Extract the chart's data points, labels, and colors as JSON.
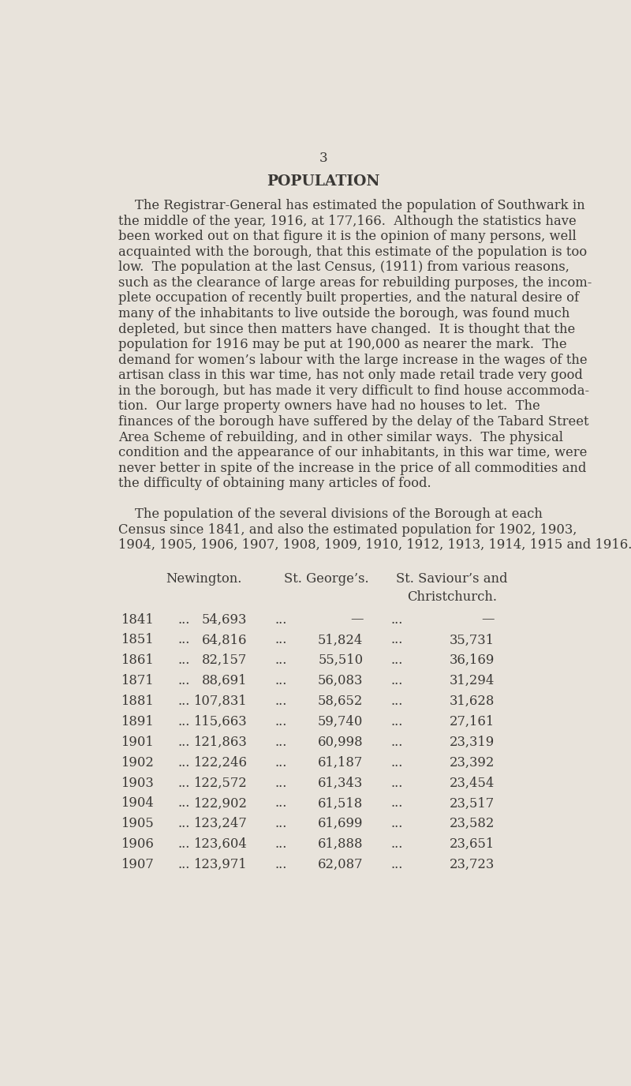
{
  "page_number": "3",
  "title": "POPULATION",
  "background_color": "#e8e3db",
  "text_color": "#3a3835",
  "para1_lines": [
    "    The Registrar-General has estimated the population of Southwark in",
    "the middle of the year, 1916, at 177,166.  Although the statistics have",
    "been worked out on that figure it is the opinion of many persons, well",
    "acquainted with the borough, that this estimate of the population is too",
    "low.  The population at the last Census, (1911) from various reasons,",
    "such as the clearance of large areas for rebuilding purposes, the incom-",
    "plete occupation of recently built properties, and the natural desire of",
    "many of the inhabitants to live outside the borough, was found much",
    "depleted, but since then matters have changed.  It is thought that the",
    "population for 1916 may be put at 190,000 as nearer the mark.  The",
    "demand for women’s labour with the large increase in the wages of the",
    "artisan class in this war time, has not only made retail trade very good",
    "in the borough, but has made it very difficult to find house accommoda-",
    "tion.  Our large property owners have had no houses to let.  The",
    "finances of the borough have suffered by the delay of the Tabard Street",
    "Area Scheme of rebuilding, and in other similar ways.  The physical",
    "condition and the appearance of our inhabitants, in this war time, were",
    "never better in spite of the increase in the price of all commodities and",
    "the difficulty of obtaining many articles of food."
  ],
  "para2_lines": [
    "    The population of the several divisions of the Borough at each",
    "Census since 1841, and also the estimated population for 1902, 1903,",
    "1904, 1905, 1906, 1907, 1908, 1909, 1910, 1912, 1913, 1914, 1915 and 1916."
  ],
  "table_header_line1": "St. Saviour’s and",
  "table_header_newington": "Newington.",
  "table_header_george": "St. George’s.",
  "table_header_line2": "Christchurch.",
  "table_rows": [
    [
      "1841",
      "...",
      "54,693",
      "...",
      "—",
      "...",
      "—"
    ],
    [
      "1851",
      "...",
      "64,816",
      "...",
      "51,824",
      "...",
      "35,731"
    ],
    [
      "1861",
      "...",
      "82,157",
      "...",
      "55,510",
      "...",
      "36,169"
    ],
    [
      "1871",
      "...",
      "88,691",
      "...",
      "56,083",
      "...",
      "31,294"
    ],
    [
      "1881",
      "...",
      "107,831",
      "...",
      "58,652",
      "...",
      "31,628"
    ],
    [
      "1891",
      "...",
      "115,663",
      "...",
      "59,740",
      "...",
      "27,161"
    ],
    [
      "1901",
      "...",
      "121,863",
      "...",
      "60,998",
      "...",
      "23,319"
    ],
    [
      "1902",
      "...",
      "122,246",
      "...",
      "61,187",
      "...",
      "23,392"
    ],
    [
      "1903",
      "...",
      "122,572",
      "...",
      "61,343",
      "...",
      "23,454"
    ],
    [
      "1904",
      "...",
      "122,902",
      "...",
      "61,518",
      "...",
      "23,517"
    ],
    [
      "1905",
      "...",
      "123,247",
      "...",
      "61,699",
      "...",
      "23,582"
    ],
    [
      "1906",
      "...",
      "123,604",
      "...",
      "61,888",
      "...",
      "23,651"
    ],
    [
      "1907",
      "...",
      "123,971",
      "...",
      "62,087",
      "...",
      "23,723"
    ]
  ],
  "font_family": "serif",
  "page_num_fontsize": 12,
  "title_fontsize": 13.5,
  "body_fontsize": 11.8,
  "table_fontsize": 11.8,
  "fig_width": 8.0,
  "fig_height": 13.76
}
